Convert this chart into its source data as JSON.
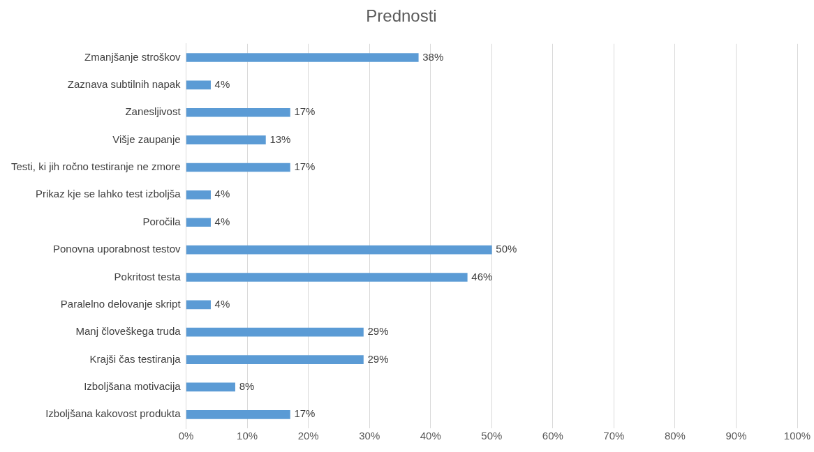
{
  "chart_data": {
    "type": "bar",
    "orientation": "horizontal",
    "title": "Prednosti",
    "categories": [
      "Zmanjšanje stroškov",
      "Zaznava subtilnih napak",
      "Zanesljivost",
      "Višje zaupanje",
      "Testi, ki jih ročno testiranje ne zmore",
      "Prikaz kje se lahko test izboljša",
      "Poročila",
      "Ponovna uporabnost testov",
      "Pokritost testa",
      "Paralelno delovanje skript",
      "Manj človeškega truda",
      "Krajši čas testiranja",
      "Izboljšana motivacija",
      "Izboljšana kakovost produkta"
    ],
    "values": [
      38,
      4,
      17,
      13,
      17,
      4,
      4,
      50,
      46,
      4,
      29,
      29,
      8,
      17
    ],
    "value_labels": [
      "38%",
      "4%",
      "17%",
      "13%",
      "17%",
      "4%",
      "4%",
      "50%",
      "46%",
      "4%",
      "29%",
      "29%",
      "8%",
      "17%"
    ],
    "color": "#5b9bd5",
    "xlim": [
      0,
      100
    ],
    "xticks": [
      {
        "value": 0,
        "label": "0%"
      },
      {
        "value": 10,
        "label": "10%"
      },
      {
        "value": 20,
        "label": "20%"
      },
      {
        "value": 30,
        "label": "30%"
      },
      {
        "value": 40,
        "label": "40%"
      },
      {
        "value": 50,
        "label": "50%"
      },
      {
        "value": 60,
        "label": "60%"
      },
      {
        "value": 70,
        "label": "70%"
      },
      {
        "value": 80,
        "label": "80%"
      },
      {
        "value": 90,
        "label": "90%"
      },
      {
        "value": 100,
        "label": "100%"
      }
    ],
    "grid": "x",
    "legend": false
  }
}
